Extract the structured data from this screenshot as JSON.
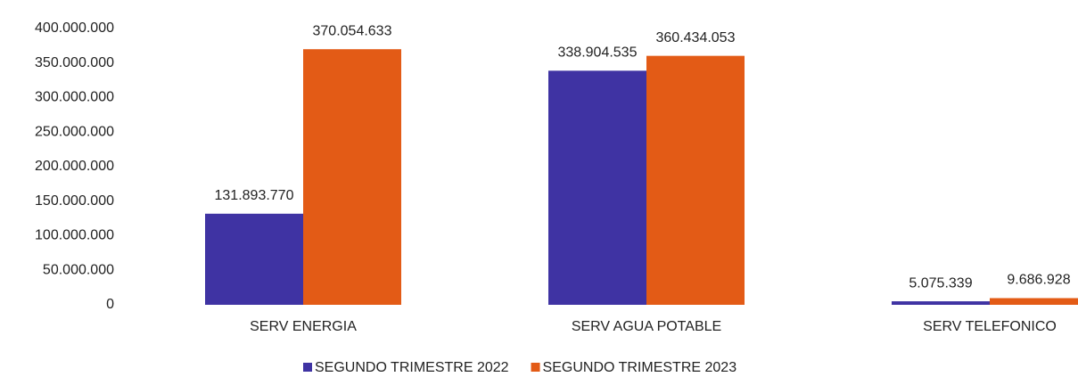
{
  "chart_data": {
    "type": "bar",
    "categories": [
      "SERV ENERGIA",
      "SERV AGUA POTABLE",
      "SERV TELEFONICO"
    ],
    "series": [
      {
        "name": "SEGUNDO TRIMESTRE 2022",
        "color": "#3f33a3",
        "values": [
          131893770,
          338904535,
          5075339
        ],
        "value_labels": [
          "131.893.770",
          "338.904.535",
          "5.075.339"
        ]
      },
      {
        "name": "SEGUNDO TRIMESTRE 2023",
        "color": "#e35b16",
        "values": [
          370054633,
          360434053,
          9686928
        ],
        "value_labels": [
          "370.054.633",
          "360.434.053",
          "9.686.928"
        ]
      }
    ],
    "ylim": [
      0,
      400000000
    ],
    "yticks": [
      0,
      {
        "value": 50000000,
        "label": "50.000.000"
      },
      {
        "value": 100000000,
        "label": "100.000.000"
      },
      {
        "value": 150000000,
        "label": "150.000.000"
      },
      {
        "value": 200000000,
        "label": "200.000.000"
      },
      {
        "value": 250000000,
        "label": "250.000.000"
      },
      {
        "value": 300000000,
        "label": "300.000.000"
      },
      {
        "value": 350000000,
        "label": "350.000.000"
      },
      {
        "value": 400000000,
        "label": "400.000.000"
      }
    ],
    "grid": false,
    "legend": "bottom"
  }
}
